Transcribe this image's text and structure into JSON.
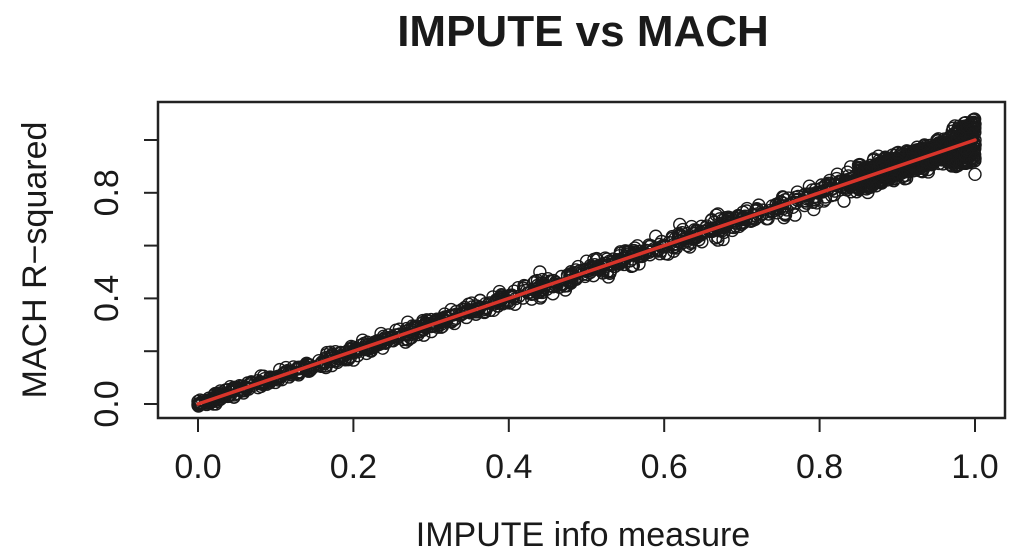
{
  "chart_data": {
    "type": "scatter",
    "title": "IMPUTE vs MACH",
    "xlabel": "IMPUTE info measure",
    "ylabel": "MACH R−squared",
    "xlim": [
      0.0,
      1.0
    ],
    "ylim": [
      0.0,
      1.0
    ],
    "x_ticks": [
      {
        "value": 0.0,
        "label": "0.0"
      },
      {
        "value": 0.2,
        "label": "0.2"
      },
      {
        "value": 0.4,
        "label": "0.4"
      },
      {
        "value": 0.6,
        "label": "0.6"
      },
      {
        "value": 0.8,
        "label": "0.8"
      },
      {
        "value": 1.0,
        "label": "1.0"
      }
    ],
    "y_ticks": [
      {
        "value": 0.0,
        "label": "0.0"
      },
      {
        "value": 0.2,
        "label": ""
      },
      {
        "value": 0.4,
        "label": "0.4"
      },
      {
        "value": 0.6,
        "label": ""
      },
      {
        "value": 0.8,
        "label": "0.8"
      },
      {
        "value": 1.0,
        "label": ""
      }
    ],
    "grid": false,
    "series": [
      {
        "marker": "open-circle",
        "color": "#1a1a1a",
        "x": [
          0.0,
          0.02,
          0.03,
          0.05,
          0.06,
          0.08,
          0.1,
          0.12,
          0.14,
          0.16,
          0.18,
          0.2,
          0.22,
          0.24,
          0.27,
          0.29,
          0.3,
          0.32,
          0.35,
          0.37,
          0.4,
          0.42,
          0.44,
          0.46,
          0.48,
          0.5,
          0.52,
          0.55,
          0.57,
          0.6,
          0.62,
          0.64,
          0.66,
          0.68,
          0.7,
          0.72,
          0.74,
          0.76,
          0.78,
          0.8,
          0.82,
          0.84,
          0.86,
          0.88,
          0.9,
          0.92,
          0.94,
          0.95,
          0.96,
          0.97,
          0.98,
          0.99,
          0.99,
          1.0,
          1.0,
          1.0,
          1.0,
          1.0
        ],
        "y": [
          0.01,
          0.0,
          0.03,
          0.04,
          0.05,
          0.08,
          0.1,
          0.11,
          0.15,
          0.16,
          0.19,
          0.2,
          0.21,
          0.25,
          0.31,
          0.28,
          0.32,
          0.33,
          0.35,
          0.38,
          0.39,
          0.43,
          0.5,
          0.46,
          0.49,
          0.51,
          0.52,
          0.58,
          0.56,
          0.6,
          0.68,
          0.63,
          0.66,
          0.69,
          0.7,
          0.72,
          0.73,
          0.78,
          0.77,
          0.8,
          0.83,
          0.83,
          0.86,
          0.87,
          0.92,
          0.91,
          0.97,
          0.93,
          0.99,
          0.95,
          1.02,
          0.96,
          1.05,
          0.98,
          1.06,
          1.0,
          0.93,
          0.87
        ]
      }
    ],
    "fit_line": {
      "x": [
        0.0,
        1.0
      ],
      "y": [
        0.0,
        1.0
      ],
      "color": "#d8342a"
    }
  }
}
